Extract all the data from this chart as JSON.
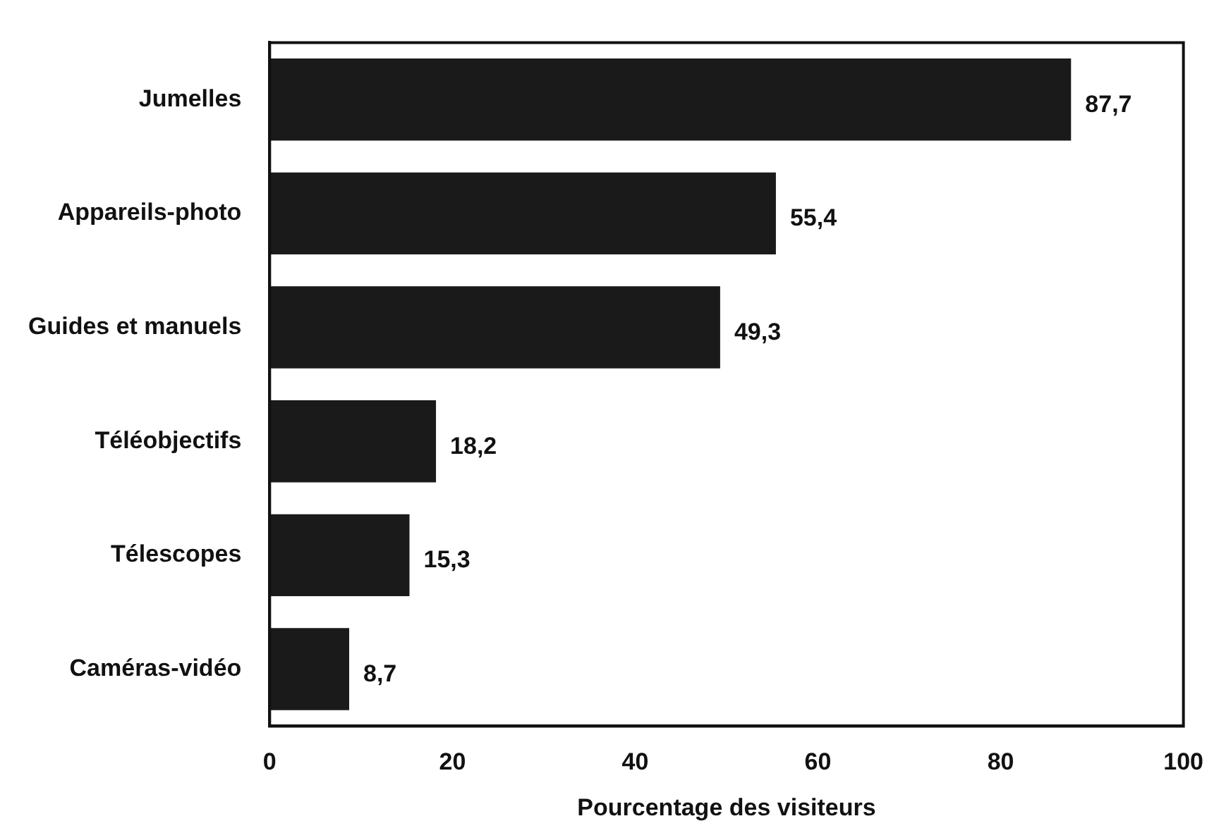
{
  "chart_data": {
    "type": "bar",
    "orientation": "horizontal",
    "xlabel": "Pourcentage des visiteurs",
    "categories": [
      "Jumelles",
      "Appareils-photo",
      "Guides et manuels",
      "Téléobjectifs",
      "Télescopes",
      "Caméras-vidéo"
    ],
    "values": [
      87.7,
      55.4,
      49.3,
      18.2,
      15.3,
      8.7
    ],
    "value_labels": [
      "87,7",
      "55,4",
      "49,3",
      "18,2",
      "15,3",
      "8,7"
    ],
    "color": "#1a1a1a",
    "xlim": [
      0,
      100
    ],
    "xticks": [
      0,
      20,
      40,
      60,
      80,
      100
    ],
    "grid": false,
    "legend": false
  }
}
